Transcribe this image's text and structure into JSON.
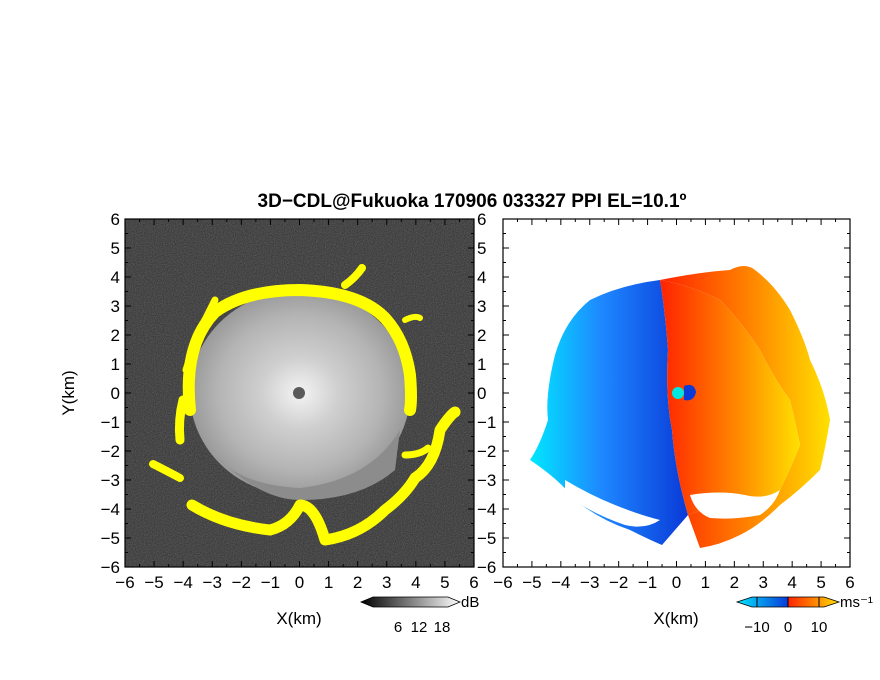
{
  "chart_data": {
    "type": "heatmap",
    "title": "3D−CDL@Fukuoka 170906 033327 PPI EL=10.1º",
    "panels": [
      {
        "id": "snr",
        "xlabel": "X(km)",
        "ylabel": "Y(km)",
        "xlim": [
          -6,
          6
        ],
        "ylim": [
          -6,
          6
        ],
        "x_ticks": [
          "−6",
          "−5",
          "−4",
          "−3",
          "−2",
          "−1",
          "0",
          "1",
          "2",
          "3",
          "4",
          "5",
          "6"
        ],
        "y_ticks": [
          "6",
          "5",
          "4",
          "3",
          "2",
          "1",
          "0",
          "−1",
          "−2",
          "−3",
          "−4",
          "−5",
          "−6"
        ],
        "background_color": "#2f2f2f",
        "echo_colors": [
          "#8a8a8a",
          "#c9c9c9",
          "#f0f0f0"
        ],
        "highlight_color": "#ffff00",
        "colorbar": {
          "unit": "dB",
          "tick_labels": [
            "6",
            "12",
            "18"
          ],
          "colors": [
            "#000000",
            "#ffffff"
          ]
        }
      },
      {
        "id": "velocity",
        "xlabel": "X(km)",
        "ylabel": "",
        "xlim": [
          -6,
          6
        ],
        "ylim": [
          -6,
          6
        ],
        "x_ticks": [
          "−6",
          "−5",
          "−4",
          "−3",
          "−2",
          "−1",
          "0",
          "1",
          "2",
          "3",
          "4",
          "5",
          "6"
        ],
        "y_ticks": [],
        "negative_colors": [
          "#0a3ad8",
          "#1e88ff",
          "#00e8ff"
        ],
        "positive_colors": [
          "#ff2200",
          "#ff8800",
          "#ffe000"
        ],
        "center_marker_color": "#00e8e0",
        "colorbar": {
          "unit": "ms⁻¹",
          "tick_labels": [
            "−10",
            "0",
            "10"
          ],
          "colors": [
            "#00e8ff",
            "#0a3ad8",
            "#ff2200",
            "#ffe000"
          ]
        }
      }
    ]
  }
}
